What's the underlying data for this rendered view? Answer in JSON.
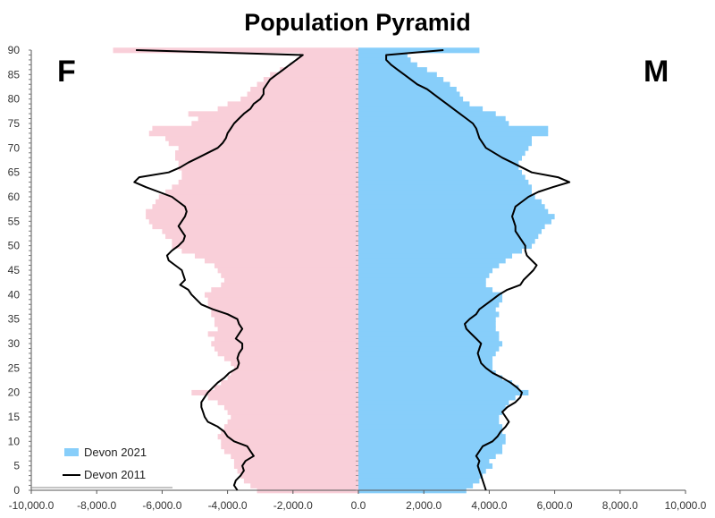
{
  "chart_data": {
    "type": "bar",
    "orientation": "horizontal-pyramid",
    "title": "Population Pyramid",
    "left_label": "F",
    "right_label": "M",
    "xlim": [
      -10000,
      10000
    ],
    "ylim": [
      0,
      90
    ],
    "x_ticks": [
      -10000,
      -8000,
      -6000,
      -4000,
      -2000,
      0,
      2000,
      4000,
      6000,
      8000,
      10000
    ],
    "x_tick_labels": [
      "-10,000.0",
      "-8,000.0",
      "-6,000.0",
      "-4,000.0",
      "-2,000.0",
      "0.0",
      "2,000.0",
      "4,000.0",
      "6,000.0",
      "8,000.0",
      "10,000.0"
    ],
    "y_ticks": [
      0,
      5,
      10,
      15,
      20,
      25,
      30,
      35,
      40,
      45,
      50,
      55,
      60,
      65,
      70,
      75,
      80,
      85,
      90
    ],
    "y_tick_labels": [
      "0",
      "5",
      "10",
      "15",
      "20",
      "25",
      "30",
      "35",
      "40",
      "45",
      "50",
      "55",
      "60",
      "65",
      "70",
      "75",
      "80",
      "85",
      "90"
    ],
    "legend_position": "bottom-left",
    "colors": {
      "female_bars": "#f9cfd9",
      "male_bars": "#87cefa",
      "line_2011": "#000000"
    },
    "ages": [
      0,
      1,
      2,
      3,
      4,
      5,
      6,
      7,
      8,
      9,
      10,
      11,
      12,
      13,
      14,
      15,
      16,
      17,
      18,
      19,
      20,
      21,
      22,
      23,
      24,
      25,
      26,
      27,
      28,
      29,
      30,
      31,
      32,
      33,
      34,
      35,
      36,
      37,
      38,
      39,
      40,
      41,
      42,
      43,
      44,
      45,
      46,
      47,
      48,
      49,
      50,
      51,
      52,
      53,
      54,
      55,
      56,
      57,
      58,
      59,
      60,
      61,
      62,
      63,
      64,
      65,
      66,
      67,
      68,
      69,
      70,
      71,
      72,
      73,
      74,
      75,
      76,
      77,
      78,
      79,
      80,
      81,
      82,
      83,
      84,
      85,
      86,
      87,
      88,
      89,
      90
    ],
    "series": [
      {
        "name": "Devon 2021",
        "kind": "bars",
        "female": [
          -3100,
          -3300,
          -3500,
          -3600,
          -3700,
          -3800,
          -3800,
          -3900,
          -4100,
          -4200,
          -4200,
          -4300,
          -4200,
          -4100,
          -4000,
          -3900,
          -4000,
          -4100,
          -4300,
          -4600,
          -5100,
          -4400,
          -4200,
          -4000,
          -3900,
          -3800,
          -3900,
          -4100,
          -4300,
          -4400,
          -4500,
          -4400,
          -4600,
          -4300,
          -4400,
          -4400,
          -4500,
          -4500,
          -4600,
          -4600,
          -4700,
          -4500,
          -4200,
          -4100,
          -4200,
          -4300,
          -4400,
          -4700,
          -5000,
          -5400,
          -5700,
          -5700,
          -5900,
          -6000,
          -6300,
          -6400,
          -6500,
          -6500,
          -6300,
          -6200,
          -6100,
          -5900,
          -5700,
          -5500,
          -5400,
          -5400,
          -5500,
          -5500,
          -5600,
          -5600,
          -5500,
          -5800,
          -5900,
          -6400,
          -6300,
          -5100,
          -4900,
          -5200,
          -4300,
          -4000,
          -3600,
          -3400,
          -3300,
          -3100,
          -2900,
          -2700,
          -2400,
          -2100,
          -1900,
          -1800,
          -7500
        ],
        "male": [
          3300,
          3500,
          3700,
          3800,
          3900,
          4100,
          4000,
          4200,
          4400,
          4400,
          4500,
          4500,
          4400,
          4400,
          4300,
          4300,
          4400,
          4500,
          4600,
          4800,
          5200,
          4900,
          4700,
          4400,
          4200,
          4100,
          4100,
          4100,
          4200,
          4300,
          4400,
          4300,
          4300,
          4200,
          4200,
          4200,
          4300,
          4200,
          4300,
          4400,
          4400,
          4100,
          3900,
          3900,
          4000,
          4100,
          4300,
          4500,
          4700,
          5000,
          5300,
          5400,
          5500,
          5600,
          5700,
          5900,
          6000,
          5800,
          5700,
          5600,
          5400,
          5300,
          5300,
          5200,
          5100,
          5000,
          4900,
          4900,
          5000,
          5100,
          5200,
          5300,
          5300,
          5800,
          5800,
          4600,
          4500,
          4200,
          3800,
          3400,
          3200,
          3100,
          3000,
          2800,
          2600,
          2400,
          2100,
          1800,
          1600,
          1500,
          3700
        ]
      },
      {
        "name": "Devon 2011",
        "kind": "line",
        "female": [
          -3700,
          -3800,
          -3750,
          -3600,
          -3500,
          -3550,
          -3450,
          -3200,
          -3300,
          -3400,
          -3800,
          -4000,
          -4100,
          -4300,
          -4600,
          -4700,
          -4750,
          -4800,
          -4800,
          -4700,
          -4600,
          -4450,
          -4300,
          -4100,
          -3950,
          -3700,
          -3650,
          -3700,
          -3650,
          -3550,
          -3550,
          -3750,
          -3650,
          -3550,
          -3650,
          -3700,
          -4000,
          -4450,
          -4800,
          -4950,
          -5100,
          -5200,
          -5450,
          -5300,
          -5350,
          -5400,
          -5600,
          -5800,
          -5850,
          -5700,
          -5500,
          -5350,
          -5300,
          -5400,
          -5500,
          -5400,
          -5300,
          -5250,
          -5300,
          -5500,
          -5700,
          -6100,
          -6500,
          -6850,
          -6700,
          -5800,
          -5450,
          -5200,
          -4900,
          -4600,
          -4300,
          -4150,
          -4050,
          -4000,
          -3900,
          -3800,
          -3650,
          -3500,
          -3300,
          -3200,
          -3000,
          -2900,
          -2900,
          -2800,
          -2700,
          -2500,
          -2300,
          -2100,
          -1900,
          -1700,
          -6800
        ],
        "male": [
          3900,
          3850,
          3800,
          3750,
          3700,
          3650,
          3700,
          3600,
          3700,
          3800,
          4100,
          4250,
          4350,
          4500,
          4600,
          4500,
          4400,
          4550,
          4800,
          4950,
          5000,
          4850,
          4650,
          4400,
          4100,
          3900,
          3750,
          3700,
          3650,
          3700,
          3750,
          3600,
          3450,
          3300,
          3250,
          3400,
          3600,
          3700,
          3900,
          4100,
          4300,
          4550,
          4950,
          5050,
          5200,
          5350,
          5450,
          5300,
          5150,
          5100,
          5100,
          5000,
          4900,
          4800,
          4800,
          4750,
          4700,
          4750,
          4800,
          5000,
          5200,
          5500,
          5950,
          6450,
          6100,
          5300,
          5000,
          4700,
          4400,
          4150,
          3900,
          3800,
          3700,
          3650,
          3600,
          3500,
          3300,
          3100,
          2900,
          2700,
          2500,
          2300,
          2100,
          1800,
          1600,
          1400,
          1200,
          1000,
          850,
          850,
          2600
        ]
      }
    ]
  }
}
